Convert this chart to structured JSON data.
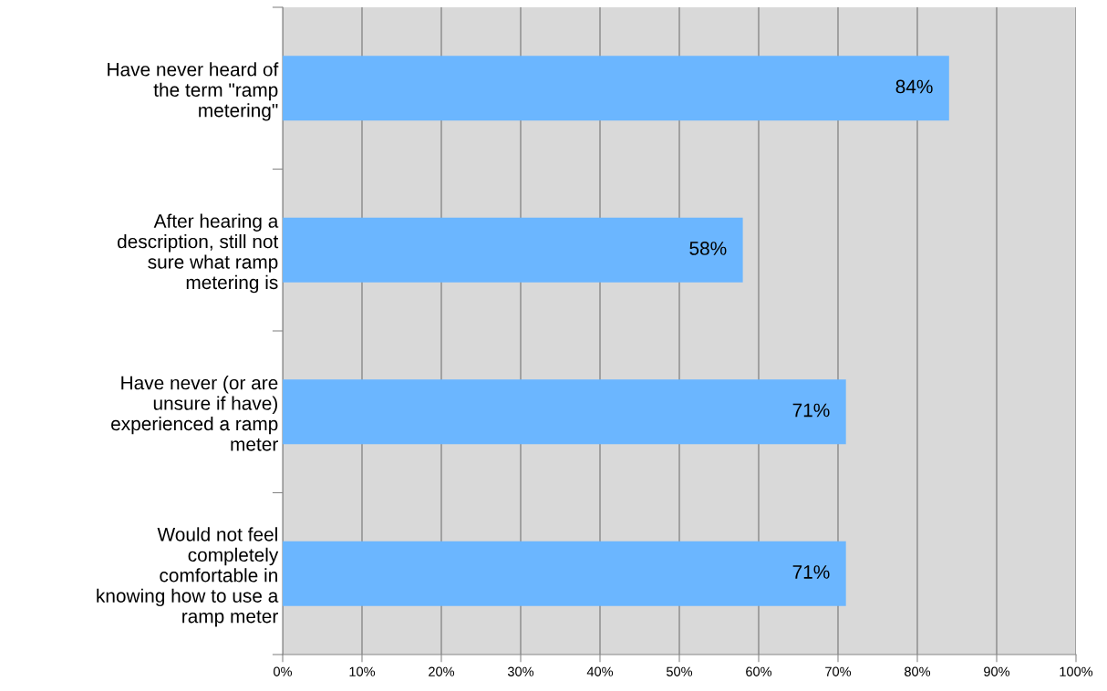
{
  "chart_data": {
    "type": "bar",
    "orientation": "horizontal",
    "categories": [
      "Have never heard of\nthe term \"ramp\nmetering\"",
      "After hearing a\ndescription, still not\nsure what ramp\nmetering is",
      "Have never (or are\nunsure if have)\nexperienced a ramp\nmeter",
      "Would not feel\ncompletely\ncomfortable in\nknowing how to use a\nramp meter"
    ],
    "values": [
      84,
      58,
      71,
      71
    ],
    "value_labels": [
      "84%",
      "58%",
      "71%",
      "71%"
    ],
    "color": "#6bb6ff",
    "xlim": [
      0,
      100
    ],
    "xticks": [
      {
        "value": 0,
        "label": "0%"
      },
      {
        "value": 10,
        "label": "10%"
      },
      {
        "value": 20,
        "label": "20%"
      },
      {
        "value": 30,
        "label": "30%"
      },
      {
        "value": 40,
        "label": "40%"
      },
      {
        "value": 50,
        "label": "50%"
      },
      {
        "value": 60,
        "label": "60%"
      },
      {
        "value": 70,
        "label": "70%"
      },
      {
        "value": 80,
        "label": "80%"
      },
      {
        "value": 90,
        "label": "90%"
      },
      {
        "value": 100,
        "label": "100%"
      }
    ],
    "grid": "x",
    "legend": false
  }
}
